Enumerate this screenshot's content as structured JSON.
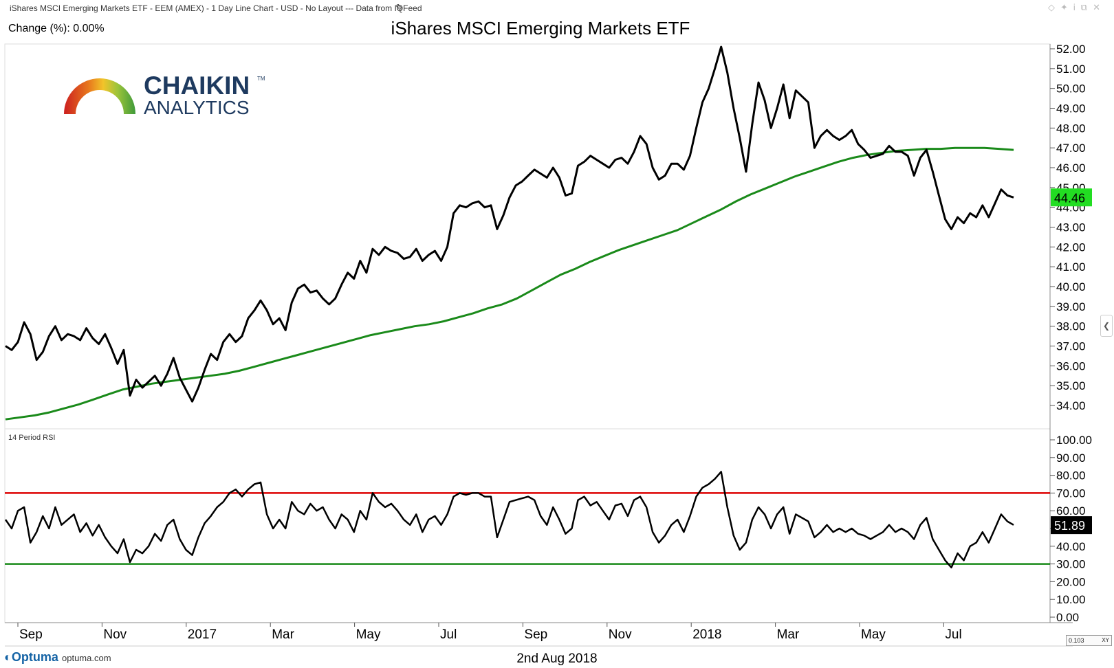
{
  "window": {
    "title": "iShares MSCI Emerging Markets ETF - EEM (AMEX) - 1 Day Line Chart - USD - No Layout --- Data from IQFeed",
    "edit_icon": "pencil-icon",
    "controls": [
      "diamond-icon",
      "pin-icon",
      "info-icon",
      "restore-icon",
      "close-icon"
    ]
  },
  "header": {
    "change_label": "Change (%): 0.00%",
    "title": "iShares MSCI Emerging Markets ETF"
  },
  "logo": {
    "brand": "CHAIKIN",
    "trademark": "TM",
    "sub": "ANALYTICS",
    "brand_color": "#1e3a5f"
  },
  "chart_data": {
    "type": "line",
    "x_labels": [
      "Sep",
      "Nov",
      "2017",
      "Mar",
      "May",
      "Jul",
      "Sep",
      "Nov",
      "2018",
      "Mar",
      "May",
      "Jul"
    ],
    "price_panel": {
      "series": [
        {
          "name": "",
          "color": "#000000",
          "values": [
            37.0,
            36.8,
            37.2,
            38.2,
            37.6,
            36.3,
            36.7,
            37.5,
            38.0,
            37.3,
            37.6,
            37.5,
            37.3,
            37.9,
            37.4,
            37.1,
            37.6,
            36.9,
            36.1,
            36.8,
            34.5,
            35.3,
            34.9,
            35.2,
            35.5,
            35.0,
            35.6,
            36.4,
            35.4,
            34.8,
            34.2,
            34.9,
            35.8,
            36.6,
            36.3,
            37.2,
            37.6,
            37.2,
            37.5,
            38.4,
            38.8,
            39.3,
            38.8,
            38.1,
            38.4,
            37.8,
            39.2,
            39.9,
            40.1,
            39.7,
            39.8,
            39.4,
            39.1,
            39.4,
            40.1,
            40.7,
            40.4,
            41.3,
            40.7,
            41.9,
            41.6,
            42.0,
            41.8,
            41.7,
            41.4,
            41.5,
            41.9,
            41.3,
            41.6,
            41.8,
            41.3,
            42.0,
            43.7,
            44.1,
            44.0,
            44.2,
            44.3,
            44.0,
            44.1,
            42.9,
            43.6,
            44.5,
            45.1,
            45.3,
            45.6,
            45.9,
            45.7,
            45.5,
            46.0,
            45.5,
            44.6,
            44.7,
            46.1,
            46.3,
            46.6,
            46.4,
            46.2,
            46.0,
            46.4,
            46.5,
            46.2,
            46.8,
            47.6,
            47.2,
            46.0,
            45.4,
            45.6,
            46.2,
            46.2,
            45.9,
            46.6,
            48.0,
            49.3,
            50.0,
            51.0,
            52.1,
            50.8,
            49.0,
            47.5,
            45.8,
            48.2,
            50.3,
            49.4,
            48.0,
            49.0,
            50.2,
            48.5,
            49.9,
            49.6,
            49.3,
            47.0,
            47.6,
            47.9,
            47.6,
            47.4,
            47.6,
            47.9,
            47.2,
            46.9,
            46.5,
            46.6,
            46.7,
            47.1,
            46.8,
            46.8,
            46.6,
            45.6,
            46.5,
            46.9,
            45.8,
            44.6,
            43.4,
            42.9,
            43.5,
            43.2,
            43.7,
            43.5,
            44.1,
            43.5,
            44.2,
            44.9,
            44.6,
            44.5
          ]
        },
        {
          "name": "",
          "color": "#1a8a1a",
          "values": [
            33.3,
            33.4,
            33.5,
            33.65,
            33.85,
            34.05,
            34.3,
            34.55,
            34.8,
            34.95,
            35.1,
            35.2,
            35.3,
            35.4,
            35.5,
            35.6,
            35.75,
            35.95,
            36.15,
            36.35,
            36.55,
            36.75,
            36.95,
            37.15,
            37.35,
            37.55,
            37.7,
            37.85,
            38.0,
            38.1,
            38.25,
            38.45,
            38.65,
            38.9,
            39.1,
            39.4,
            39.8,
            40.2,
            40.6,
            40.9,
            41.25,
            41.55,
            41.85,
            42.1,
            42.35,
            42.6,
            42.85,
            43.2,
            43.55,
            43.9,
            44.3,
            44.65,
            44.95,
            45.25,
            45.55,
            45.8,
            46.05,
            46.3,
            46.5,
            46.65,
            46.75,
            46.85,
            46.9,
            46.95,
            46.95,
            47.0,
            47.0,
            47.0,
            46.95,
            46.9
          ]
        }
      ],
      "y_ticks": [
        34.0,
        35.0,
        36.0,
        37.0,
        38.0,
        39.0,
        40.0,
        41.0,
        42.0,
        43.0,
        44.0,
        45.0,
        46.0,
        47.0,
        48.0,
        49.0,
        50.0,
        51.0,
        52.0
      ],
      "last_price_label": "44.46",
      "last_price_color": "#22dd22",
      "grid": false
    },
    "rsi_panel": {
      "label": "14 Period RSI",
      "values": [
        55,
        50,
        60,
        62,
        42,
        48,
        57,
        50,
        62,
        52,
        55,
        58,
        48,
        53,
        46,
        52,
        45,
        40,
        36,
        44,
        31,
        38,
        36,
        40,
        47,
        43,
        52,
        55,
        44,
        38,
        35,
        45,
        53,
        57,
        62,
        65,
        70,
        72,
        68,
        72,
        75,
        76,
        58,
        50,
        55,
        50,
        65,
        60,
        58,
        64,
        60,
        62,
        55,
        50,
        58,
        55,
        48,
        60,
        55,
        70,
        65,
        62,
        64,
        60,
        55,
        52,
        58,
        48,
        55,
        57,
        52,
        58,
        68,
        70,
        69,
        70,
        70,
        68,
        68,
        45,
        55,
        65,
        66,
        67,
        68,
        66,
        57,
        52,
        62,
        55,
        47,
        50,
        66,
        68,
        63,
        65,
        60,
        55,
        63,
        64,
        57,
        66,
        68,
        62,
        48,
        42,
        46,
        52,
        55,
        48,
        57,
        68,
        73,
        75,
        78,
        82,
        62,
        46,
        38,
        42,
        55,
        62,
        58,
        50,
        58,
        62,
        47,
        58,
        56,
        54,
        45,
        48,
        52,
        48,
        50,
        48,
        50,
        47,
        46,
        44,
        46,
        48,
        52,
        48,
        50,
        48,
        44,
        52,
        56,
        44,
        38,
        32,
        28,
        36,
        32,
        40,
        42,
        48,
        42,
        50,
        58,
        54,
        52
      ],
      "y_ticks": [
        0.0,
        10.0,
        20.0,
        30.0,
        40.0,
        50.0,
        60.0,
        70.0,
        80.0,
        90.0,
        100.0
      ],
      "overbought": 70,
      "oversold": 30,
      "overbought_color": "#dd0000",
      "oversold_color": "#1a8a1a",
      "last_label": "51.89",
      "last_color": "#000000"
    }
  },
  "footer": {
    "date": "2nd Aug 2018",
    "brand": "Optuma",
    "url": "optuma.com",
    "zoom": "0.103",
    "zoom_axis": "XY"
  }
}
